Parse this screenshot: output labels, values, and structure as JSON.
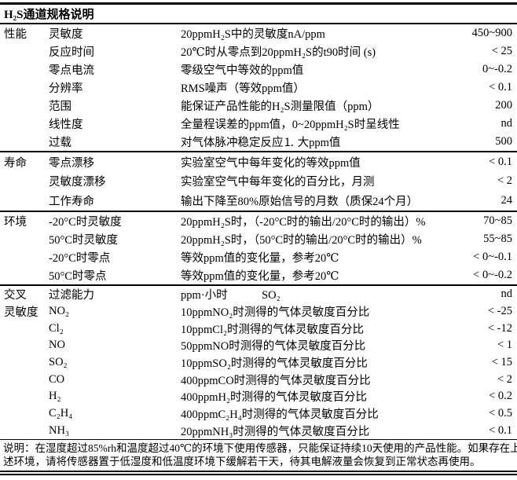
{
  "title": "H₂S通道规格说明",
  "sections": [
    {
      "name": "performance",
      "rows": [
        {
          "cat": "性能",
          "param": "灵敏度",
          "desc": "20ppmH₂S中的灵敏度nA/ppm",
          "value": "450~900"
        },
        {
          "cat": "",
          "param": "反应时间",
          "desc": "20℃时从零点到20ppmH₂S的t90时间 (s)",
          "value": "< 25"
        },
        {
          "cat": "",
          "param": "零点电流",
          "desc": "零级空气中等效的ppm值",
          "value": "0~-0.2"
        },
        {
          "cat": "",
          "param": "分辨率",
          "desc": "RMS噪声（等效ppm值）",
          "value": "< 0.1"
        },
        {
          "cat": "",
          "param": "范围",
          "desc": "能保证产品性能的H₂S测量限值（ppm）",
          "value": "200"
        },
        {
          "cat": "",
          "param": "线性度",
          "desc": "全量程误差的ppm值，0~20ppmH₂S时呈线性",
          "value": "nd"
        },
        {
          "cat": "",
          "param": "过载",
          "desc": "对气体脉冲稳定反应⒈ 大ppm值",
          "value": "500"
        }
      ]
    },
    {
      "name": "lifetime",
      "rows": [
        {
          "cat": "寿命",
          "param": "零点漂移",
          "desc": "实验室空气中每年变化的等效ppm值",
          "value": "< 0.1"
        },
        {
          "cat": "",
          "param": "灵敏度漂移",
          "desc": "实验室空气中每年变化的百分比，月测",
          "value": "< 2"
        },
        {
          "cat": "",
          "param": "工作寿命",
          "desc": "输出下降至80%原始信号的月数（质保24个月）",
          "value": "24"
        }
      ]
    },
    {
      "name": "environment",
      "rows": [
        {
          "cat": "环境",
          "param": "-20°C时灵敏度",
          "desc": "20ppmH₂S时，（-20°C时的输出/20°C时的输出）%",
          "value": "70~85"
        },
        {
          "cat": "",
          "param": "50°C时灵敏度",
          "desc": "20ppmH₂S时，（50°C时的输出/20°C时的输出）%",
          "value": "55~85"
        },
        {
          "cat": "",
          "param": "-20°C时零点",
          "desc": "等效ppm值的变化量，参考20℃",
          "value": "< 0~-0.1"
        },
        {
          "cat": "",
          "param": "50°C时零点",
          "desc": "等效ppm值的变化量，参考20℃",
          "value": "< 0~-0.2"
        }
      ]
    },
    {
      "name": "cross-sensitivity",
      "rows": [
        {
          "cat": "交叉",
          "param": "过滤能力",
          "desc": "ppm·小时            SO₂",
          "value": "nd"
        },
        {
          "cat": "灵敏度",
          "param": "NO₂",
          "desc": "10ppmNO₂时测得的气体灵敏度百分比",
          "value": "< -25"
        },
        {
          "cat": "",
          "param": "Cl₂",
          "desc": "10ppmCl₂时测得的气体灵敏度百分比",
          "value": "< -12"
        },
        {
          "cat": "",
          "param": "NO",
          "desc": "50ppmNO时测得的气体灵敏度百分比",
          "value": "< 1"
        },
        {
          "cat": "",
          "param": "SO₂",
          "desc": "10ppmSO₂时测得的气体灵敏度百分比",
          "value": "< 15"
        },
        {
          "cat": "",
          "param": "CO",
          "desc": "400ppmCO时测得的气体灵敏度百分比",
          "value": "< 2"
        },
        {
          "cat": "",
          "param": "H₂",
          "desc": "400ppmH₂时测得的气体灵敏度百分比",
          "value": "< 0.2"
        },
        {
          "cat": "",
          "param": "C₂H₄",
          "desc": "400ppmC₂H₄时测得的气体灵敏度百分比",
          "value": "< 0.5"
        },
        {
          "cat": "",
          "param": "NH₃",
          "desc": "20ppmNH₃时测得的气体灵敏度百分比",
          "value": "< 0.1"
        }
      ]
    }
  ],
  "footnote": [
    "说明：在湿度超过85%rh和温度超过40℃的环境下使用传感器，只能保证持续10天使用的产品性能。如果存在上",
    "述环境，请将传感器置于低湿度和低温度环境下缓解若干天，待其电解液量会恢复到正常状态再使用。"
  ]
}
